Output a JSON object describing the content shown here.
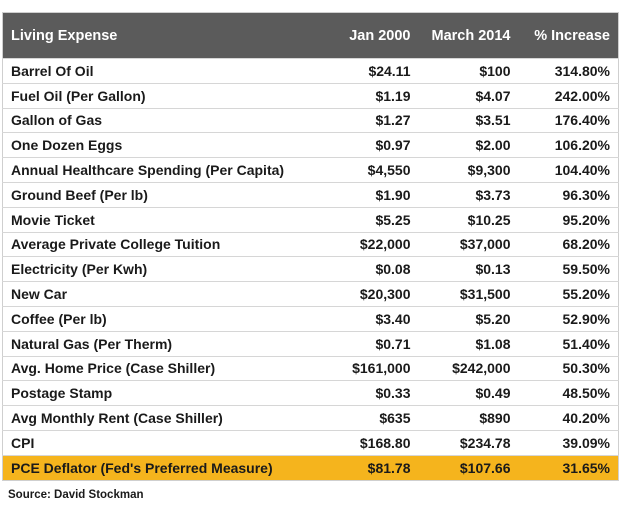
{
  "table": {
    "columns": [
      "Living Expense",
      "Jan 2000",
      "March 2014",
      "% Increase"
    ],
    "rows": [
      [
        "Barrel Of Oil",
        "$24.11",
        "$100",
        "314.80%"
      ],
      [
        "Fuel Oil (Per Gallon)",
        "$1.19",
        "$4.07",
        "242.00%"
      ],
      [
        "Gallon of Gas",
        "$1.27",
        "$3.51",
        "176.40%"
      ],
      [
        "One Dozen Eggs",
        "$0.97",
        "$2.00",
        "106.20%"
      ],
      [
        "Annual Healthcare Spending (Per Capita)",
        "$4,550",
        "$9,300",
        "104.40%"
      ],
      [
        "Ground Beef (Per lb)",
        "$1.90",
        "$3.73",
        "96.30%"
      ],
      [
        "Movie Ticket",
        "$5.25",
        "$10.25",
        "95.20%"
      ],
      [
        "Average Private College Tuition",
        "$22,000",
        "$37,000",
        "68.20%"
      ],
      [
        "Electricity (Per Kwh)",
        "$0.08",
        "$0.13",
        "59.50%"
      ],
      [
        "New Car",
        "$20,300",
        "$31,500",
        "55.20%"
      ],
      [
        "Coffee (Per lb)",
        "$3.40",
        "$5.20",
        "52.90%"
      ],
      [
        "Natural Gas (Per Therm)",
        "$0.71",
        "$1.08",
        "51.40%"
      ],
      [
        "Avg. Home Price (Case Shiller)",
        "$161,000",
        "$242,000",
        "50.30%"
      ],
      [
        "Postage Stamp",
        "$0.33",
        "$0.49",
        "48.50%"
      ],
      [
        "Avg Monthly Rent (Case Shiller)",
        "$635",
        "$890",
        "40.20%"
      ],
      [
        "CPI",
        "$168.80",
        "$234.78",
        "39.09%"
      ],
      [
        "PCE Deflator (Fed's Preferred Measure)",
        "$81.78",
        "$107.66",
        "31.65%"
      ]
    ],
    "source": "Source: David Stockman"
  }
}
